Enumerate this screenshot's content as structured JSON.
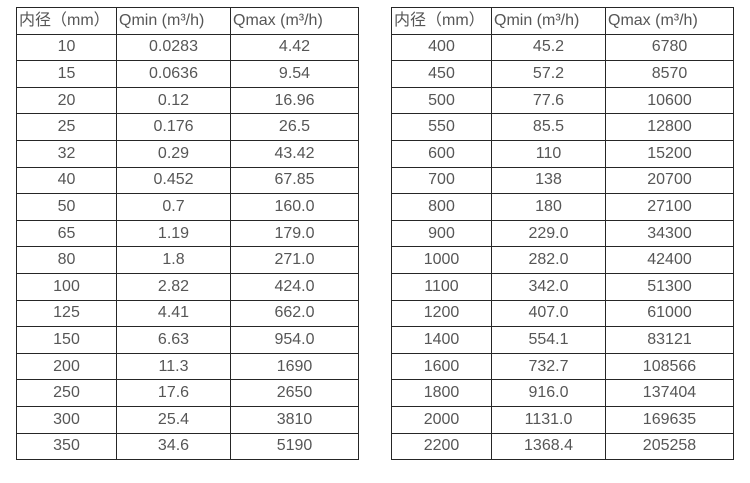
{
  "colors": {
    "background": "#ffffff",
    "border": "#262626",
    "text": "#565656"
  },
  "headers": {
    "diameter": "内径（mm）",
    "qmin": "Qmin (m³/h)",
    "qmax": "Qmax (m³/h)"
  },
  "tables": [
    {
      "name": "small-diameters",
      "rows": [
        [
          "10",
          "0.0283",
          "4.42"
        ],
        [
          "15",
          "0.0636",
          "9.54"
        ],
        [
          "20",
          "0.12",
          "16.96"
        ],
        [
          "25",
          "0.176",
          "26.5"
        ],
        [
          "32",
          "0.29",
          "43.42"
        ],
        [
          "40",
          "0.452",
          "67.85"
        ],
        [
          "50",
          "0.7",
          "160.0"
        ],
        [
          "65",
          "1.19",
          "179.0"
        ],
        [
          "80",
          "1.8",
          "271.0"
        ],
        [
          "100",
          "2.82",
          "424.0"
        ],
        [
          "125",
          "4.41",
          "662.0"
        ],
        [
          "150",
          "6.63",
          "954.0"
        ],
        [
          "200",
          "11.3",
          "1690"
        ],
        [
          "250",
          "17.6",
          "2650"
        ],
        [
          "300",
          "25.4",
          "3810"
        ],
        [
          "350",
          "34.6",
          "5190"
        ]
      ]
    },
    {
      "name": "large-diameters",
      "rows": [
        [
          "400",
          "45.2",
          "6780"
        ],
        [
          "450",
          "57.2",
          "8570"
        ],
        [
          "500",
          "77.6",
          "10600"
        ],
        [
          "550",
          "85.5",
          "12800"
        ],
        [
          "600",
          "110",
          "15200"
        ],
        [
          "700",
          "138",
          "20700"
        ],
        [
          "800",
          "180",
          "27100"
        ],
        [
          "900",
          "229.0",
          "34300"
        ],
        [
          "1000",
          "282.0",
          "42400"
        ],
        [
          "1100",
          "342.0",
          "51300"
        ],
        [
          "1200",
          "407.0",
          "61000"
        ],
        [
          "1400",
          "554.1",
          "83121"
        ],
        [
          "1600",
          "732.7",
          "108566"
        ],
        [
          "1800",
          "916.0",
          "137404"
        ],
        [
          "2000",
          "1131.0",
          "169635"
        ],
        [
          "2200",
          "1368.4",
          "205258"
        ]
      ]
    }
  ]
}
